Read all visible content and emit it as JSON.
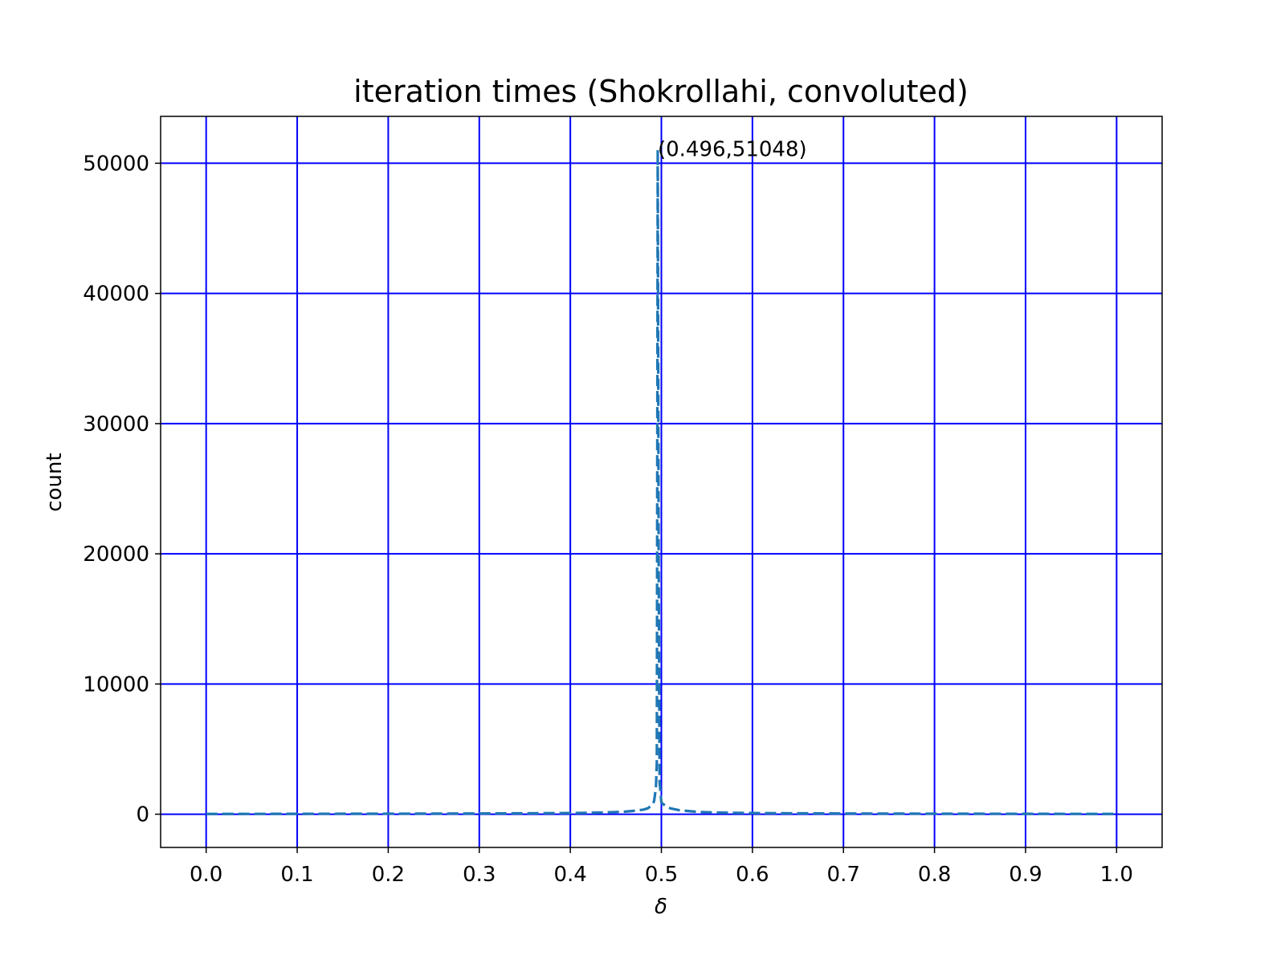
{
  "chart_data": {
    "type": "line",
    "title": "iteration times (Shokrollahi, convoluted)",
    "xlabel": "δ",
    "ylabel": "count",
    "xlim": [
      -0.05,
      1.05
    ],
    "ylim": [
      -2552,
      53600
    ],
    "x_ticks": [
      0.0,
      0.1,
      0.2,
      0.3,
      0.4,
      0.5,
      0.6,
      0.7,
      0.8,
      0.9,
      1.0
    ],
    "x_tick_labels": [
      "0.0",
      "0.1",
      "0.2",
      "0.3",
      "0.4",
      "0.5",
      "0.6",
      "0.7",
      "0.8",
      "0.9",
      "1.0"
    ],
    "y_ticks": [
      0,
      10000,
      20000,
      30000,
      40000,
      50000
    ],
    "y_tick_labels": [
      "0",
      "10000",
      "20000",
      "30000",
      "40000",
      "50000"
    ],
    "grid": true,
    "grid_color": "#0000ff",
    "series": [
      {
        "line_style": "dashed",
        "color": "#1f77b4",
        "points": [
          [
            0.0,
            20
          ],
          [
            0.05,
            25
          ],
          [
            0.1,
            30
          ],
          [
            0.15,
            35
          ],
          [
            0.2,
            40
          ],
          [
            0.25,
            45
          ],
          [
            0.3,
            55
          ],
          [
            0.35,
            70
          ],
          [
            0.4,
            90
          ],
          [
            0.42,
            110
          ],
          [
            0.44,
            140
          ],
          [
            0.46,
            200
          ],
          [
            0.47,
            260
          ],
          [
            0.48,
            350
          ],
          [
            0.485,
            450
          ],
          [
            0.49,
            700
          ],
          [
            0.492,
            1000
          ],
          [
            0.494,
            2000
          ],
          [
            0.495,
            4000
          ],
          [
            0.496,
            51048
          ],
          [
            0.497,
            20000
          ],
          [
            0.498,
            2500
          ],
          [
            0.5,
            900
          ],
          [
            0.505,
            600
          ],
          [
            0.51,
            450
          ],
          [
            0.52,
            300
          ],
          [
            0.54,
            180
          ],
          [
            0.56,
            130
          ],
          [
            0.6,
            90
          ],
          [
            0.65,
            70
          ],
          [
            0.7,
            55
          ],
          [
            0.75,
            45
          ],
          [
            0.8,
            40
          ],
          [
            0.85,
            35
          ],
          [
            0.9,
            30
          ],
          [
            0.95,
            25
          ],
          [
            1.0,
            20
          ]
        ]
      }
    ],
    "annotation": {
      "text": "(0.496,51048)",
      "x": 0.496,
      "y": 51048
    }
  }
}
